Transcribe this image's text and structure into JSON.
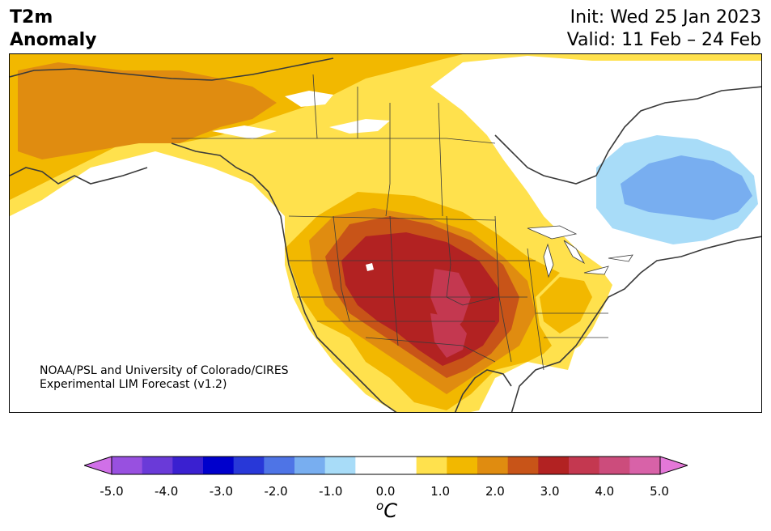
{
  "header": {
    "variable": "T2m",
    "subtitle": "Anomaly",
    "init": "Init: Wed 25 Jan 2023",
    "valid": "Valid: 11 Feb – 24 Feb"
  },
  "credit": {
    "line1": "NOAA/PSL and University of Colorado/CIRES",
    "line2": "Experimental LIM Forecast (v1.2)"
  },
  "colorbar": {
    "unit": "°C",
    "unit_superscript": "o",
    "unit_letter": "C",
    "ticks": [
      "-5.0",
      "-4.0",
      "-3.0",
      "-2.0",
      "-1.0",
      "0.0",
      "1.0",
      "2.0",
      "3.0",
      "4.0",
      "5.0"
    ],
    "colors": [
      "#d070e8",
      "#9850e0",
      "#6a3ad8",
      "#3a20d0",
      "#0000cc",
      "#2838d8",
      "#4e74e6",
      "#78aef0",
      "#a8dcf8",
      "#ffffff",
      "#ffffff",
      "#ffe14d",
      "#f2b800",
      "#e08c10",
      "#c85418",
      "#b22222",
      "#c43850",
      "#cc4c7c",
      "#d862a8",
      "#e478d8"
    ]
  },
  "map": {
    "region": "North America",
    "colors": {
      "anom_0_5": "#ffe14d",
      "anom_1_0": "#f2b800",
      "anom_1_5": "#e08c10",
      "anom_2_0": "#c85418",
      "anom_2_5": "#b22222",
      "anom_3_0": "#c43850",
      "anom_neg_0_5": "#a8dcf8",
      "anom_neg_1_0": "#78aef0",
      "coast": "#3a3a3a"
    }
  }
}
